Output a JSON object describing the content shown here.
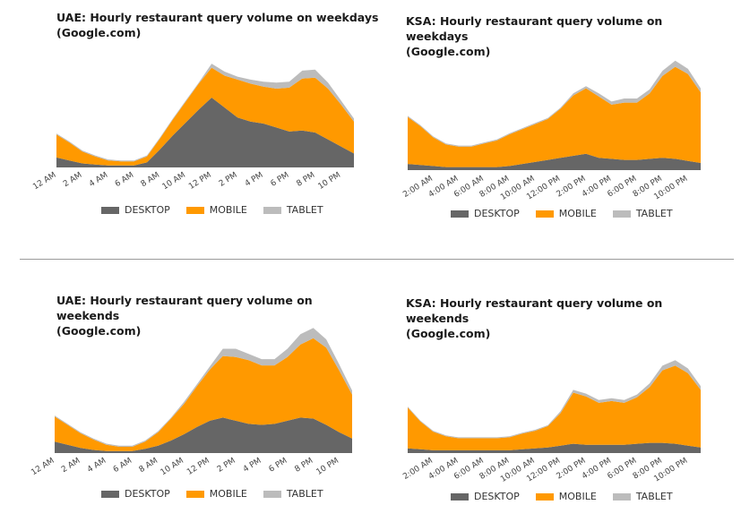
{
  "colors": {
    "desktop": "#666666",
    "mobile": "#ff9900",
    "tablet": "#bcbcbc"
  },
  "legend": [
    "DESKTOP",
    "MOBILE",
    "TABLET"
  ],
  "chart_data": [
    {
      "type": "area",
      "stacked": true,
      "title": "UAE: Hourly restaurant query volume on weekdays\n(Google.com)",
      "categories": [
        "12 AM",
        "1 AM",
        "2 AM",
        "3 AM",
        "4 AM",
        "5 AM",
        "6 AM",
        "7 AM",
        "8 AM",
        "9 AM",
        "10 AM",
        "11 AM",
        "12 PM",
        "1 PM",
        "2 PM",
        "3 PM",
        "4 PM",
        "5 PM",
        "6 PM",
        "7 PM",
        "8 PM",
        "9 PM",
        "10 PM",
        "11 PM"
      ],
      "tick_labels": [
        "12 AM",
        "2 AM",
        "4 AM",
        "6 AM",
        "8 AM",
        "10 AM",
        "12 PM",
        "2 PM",
        "4 PM",
        "6 PM",
        "8 PM",
        "10 PM"
      ],
      "series": [
        {
          "name": "DESKTOP",
          "values": [
            10,
            7,
            4,
            3,
            2,
            2,
            2,
            5,
            18,
            32,
            45,
            58,
            70,
            60,
            50,
            46,
            44,
            40,
            36,
            37,
            35,
            28,
            21,
            14
          ]
        },
        {
          "name": "MOBILE",
          "values": [
            23,
            18,
            12,
            8,
            5,
            4,
            4,
            6,
            11,
            16,
            21,
            26,
            30,
            32,
            38,
            38,
            37,
            39,
            44,
            52,
            55,
            51,
            42,
            32
          ]
        },
        {
          "name": "TABLET",
          "values": [
            1,
            1,
            1,
            1,
            1,
            1,
            1,
            1,
            1,
            1,
            1,
            1,
            4,
            4,
            3,
            4,
            5,
            6,
            6,
            8,
            8,
            6,
            4,
            3
          ]
        }
      ]
    },
    {
      "type": "area",
      "stacked": true,
      "title": "KSA: Hourly restaurant query volume on weekdays\n(Google.com)",
      "categories": [
        "12:00 AM",
        "1:00 AM",
        "2:00 AM",
        "3:00 AM",
        "4:00 AM",
        "5:00 AM",
        "6:00 AM",
        "7:00 AM",
        "8:00 AM",
        "9:00 AM",
        "10:00 AM",
        "11:00 AM",
        "12:00 PM",
        "1:00 PM",
        "2:00 PM",
        "3:00 PM",
        "4:00 PM",
        "5:00 PM",
        "6:00 PM",
        "7:00 PM",
        "8:00 PM",
        "9:00 PM",
        "10:00 PM",
        "11:00 PM"
      ],
      "tick_labels": [
        "2:00 AM",
        "4:00 AM",
        "6:00 AM",
        "8:00 AM",
        "10:00 AM",
        "12:00 PM",
        "2:00 PM",
        "4:00 PM",
        "6:00 PM",
        "8:00 PM",
        "10:00 PM"
      ],
      "series": [
        {
          "name": "DESKTOP",
          "values": [
            6,
            5,
            4,
            3,
            3,
            3,
            3,
            3,
            4,
            6,
            8,
            10,
            12,
            14,
            16,
            12,
            11,
            10,
            10,
            11,
            12,
            11,
            9,
            7
          ]
        },
        {
          "name": "MOBILE",
          "values": [
            46,
            38,
            28,
            22,
            20,
            20,
            23,
            26,
            31,
            34,
            37,
            40,
            48,
            59,
            64,
            60,
            53,
            56,
            56,
            64,
            80,
            90,
            85,
            69
          ]
        },
        {
          "name": "TABLET",
          "values": [
            1,
            1,
            1,
            1,
            1,
            1,
            1,
            1,
            1,
            1,
            1,
            1,
            1,
            2,
            2,
            3,
            3,
            4,
            4,
            4,
            5,
            6,
            5,
            4
          ]
        }
      ]
    },
    {
      "type": "area",
      "stacked": true,
      "title": "UAE: Hourly restaurant query volume on weekends\n(Google.com)",
      "categories": [
        "12 AM",
        "1 AM",
        "2 AM",
        "3 AM",
        "4 AM",
        "5 AM",
        "6 AM",
        "7 AM",
        "8 AM",
        "9 AM",
        "10 AM",
        "11 AM",
        "12 PM",
        "1 PM",
        "2 PM",
        "3 PM",
        "4 PM",
        "5 PM",
        "6 PM",
        "7 PM",
        "8 PM",
        "9 PM",
        "10 PM",
        "11 PM"
      ],
      "tick_labels": [
        "12 AM",
        "2 AM",
        "4 AM",
        "6 AM",
        "8 AM",
        "10 AM",
        "12 PM",
        "2 PM",
        "4 PM",
        "6 PM",
        "8 PM",
        "10 PM"
      ],
      "series": [
        {
          "name": "DESKTOP",
          "values": [
            11,
            8,
            5,
            3,
            2,
            2,
            2,
            4,
            7,
            12,
            18,
            25,
            31,
            34,
            31,
            28,
            27,
            28,
            31,
            34,
            33,
            27,
            20,
            14
          ]
        },
        {
          "name": "MOBILE",
          "values": [
            24,
            19,
            14,
            10,
            6,
            4,
            4,
            7,
            13,
            21,
            29,
            39,
            49,
            59,
            61,
            61,
            57,
            56,
            61,
            70,
            77,
            74,
            59,
            42
          ]
        },
        {
          "name": "TABLET",
          "values": [
            1,
            1,
            1,
            1,
            1,
            1,
            1,
            1,
            1,
            1,
            2,
            2,
            3,
            7,
            8,
            6,
            6,
            6,
            8,
            10,
            10,
            8,
            6,
            4
          ]
        }
      ]
    },
    {
      "type": "area",
      "stacked": true,
      "title": "KSA: Hourly restaurant query volume on weekends\n(Google.com)",
      "categories": [
        "12:00 AM",
        "1:00 AM",
        "2:00 AM",
        "3:00 AM",
        "4:00 AM",
        "5:00 AM",
        "6:00 AM",
        "7:00 AM",
        "8:00 AM",
        "9:00 AM",
        "10:00 AM",
        "11:00 AM",
        "12:00 PM",
        "1:00 PM",
        "2:00 PM",
        "3:00 PM",
        "4:00 PM",
        "5:00 PM",
        "6:00 PM",
        "7:00 PM",
        "8:00 PM",
        "9:00 PM",
        "10:00 PM",
        "11:00 PM"
      ],
      "tick_labels": [
        "2:00 AM",
        "4:00 AM",
        "6:00 AM",
        "8:00 AM",
        "10:00 AM",
        "12:00 PM",
        "2:00 PM",
        "4:00 PM",
        "6:00 PM",
        "8:00 PM",
        "10:00 PM"
      ],
      "series": [
        {
          "name": "DESKTOP",
          "values": [
            5,
            4,
            3,
            3,
            3,
            3,
            3,
            3,
            3,
            4,
            5,
            6,
            8,
            10,
            9,
            9,
            9,
            9,
            10,
            11,
            11,
            10,
            8,
            6
          ]
        },
        {
          "name": "MOBILE",
          "values": [
            44,
            30,
            20,
            15,
            13,
            13,
            13,
            13,
            14,
            17,
            19,
            23,
            35,
            55,
            52,
            45,
            47,
            45,
            50,
            60,
            78,
            84,
            78,
            62
          ]
        },
        {
          "name": "TABLET",
          "values": [
            1,
            1,
            1,
            1,
            1,
            1,
            1,
            1,
            1,
            1,
            1,
            1,
            2,
            3,
            3,
            3,
            3,
            3,
            3,
            4,
            5,
            6,
            5,
            4
          ]
        }
      ]
    }
  ]
}
